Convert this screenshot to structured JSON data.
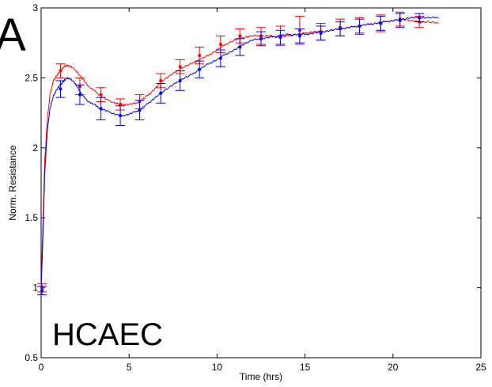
{
  "chart_data": {
    "type": "line",
    "panel_label": "A",
    "annotation": "HCAEC",
    "xlabel": "Time (hrs)",
    "ylabel": "Norm. Resistance",
    "xlim": [
      0,
      25
    ],
    "ylim": [
      0.5,
      3
    ],
    "xticks": [
      0,
      5,
      10,
      15,
      20,
      25
    ],
    "yticks": [
      0.5,
      1,
      1.5,
      2,
      2.5,
      3
    ],
    "xtick_labels": [
      "0",
      "5",
      "10",
      "15",
      "20",
      "25"
    ],
    "ytick_labels": [
      "0.5",
      "1",
      "1.5",
      "2",
      "2.5",
      "3"
    ],
    "grid": false,
    "colors": {
      "red": "#ff0000",
      "blue": "#0000ff"
    },
    "series": [
      {
        "color": "red",
        "line": [
          [
            0,
            1.0
          ],
          [
            0.1,
            1.45
          ],
          [
            0.2,
            1.9
          ],
          [
            0.35,
            2.2
          ],
          [
            0.5,
            2.38
          ],
          [
            0.7,
            2.48
          ],
          [
            0.9,
            2.52
          ],
          [
            1.1,
            2.55
          ],
          [
            1.3,
            2.58
          ],
          [
            1.5,
            2.59
          ],
          [
            1.7,
            2.58
          ],
          [
            2.0,
            2.55
          ],
          [
            2.3,
            2.5
          ],
          [
            2.7,
            2.44
          ],
          [
            3.0,
            2.41
          ],
          [
            3.4,
            2.37
          ],
          [
            3.8,
            2.34
          ],
          [
            4.2,
            2.32
          ],
          [
            4.6,
            2.31
          ],
          [
            5.0,
            2.31
          ],
          [
            5.4,
            2.32
          ],
          [
            5.8,
            2.35
          ],
          [
            6.2,
            2.39
          ],
          [
            6.6,
            2.44
          ],
          [
            7.0,
            2.49
          ],
          [
            7.5,
            2.53
          ],
          [
            8.0,
            2.57
          ],
          [
            8.5,
            2.6
          ],
          [
            9.0,
            2.63
          ],
          [
            9.5,
            2.66
          ],
          [
            10.0,
            2.7
          ],
          [
            10.5,
            2.74
          ],
          [
            11.0,
            2.77
          ],
          [
            11.5,
            2.79
          ],
          [
            12.0,
            2.8
          ],
          [
            12.5,
            2.8
          ],
          [
            13.0,
            2.8
          ],
          [
            13.5,
            2.79
          ],
          [
            14.0,
            2.8
          ],
          [
            14.5,
            2.81
          ],
          [
            15.0,
            2.82
          ],
          [
            15.5,
            2.83
          ],
          [
            16.0,
            2.83
          ],
          [
            16.5,
            2.84
          ],
          [
            17.0,
            2.85
          ],
          [
            17.5,
            2.86
          ],
          [
            18.0,
            2.87
          ],
          [
            18.5,
            2.88
          ],
          [
            19.0,
            2.89
          ],
          [
            19.5,
            2.9
          ],
          [
            20.0,
            2.91
          ],
          [
            20.5,
            2.92
          ],
          [
            21.0,
            2.91
          ],
          [
            21.5,
            2.9
          ],
          [
            22.0,
            2.9
          ],
          [
            22.6,
            2.89
          ]
        ],
        "points": [
          {
            "x": 0.05,
            "y": 1.0,
            "err": 0.03
          },
          {
            "x": 1.1,
            "y": 2.55,
            "err": 0.05
          },
          {
            "x": 2.2,
            "y": 2.44,
            "err": 0.06
          },
          {
            "x": 3.4,
            "y": 2.38,
            "err": 0.05
          },
          {
            "x": 4.5,
            "y": 2.31,
            "err": 0.04
          },
          {
            "x": 5.6,
            "y": 2.33,
            "err": 0.05
          },
          {
            "x": 6.8,
            "y": 2.48,
            "err": 0.05
          },
          {
            "x": 7.9,
            "y": 2.58,
            "err": 0.05
          },
          {
            "x": 9.0,
            "y": 2.66,
            "err": 0.06
          },
          {
            "x": 10.2,
            "y": 2.74,
            "err": 0.06
          },
          {
            "x": 11.3,
            "y": 2.8,
            "err": 0.05
          },
          {
            "x": 12.5,
            "y": 2.8,
            "err": 0.06
          },
          {
            "x": 13.6,
            "y": 2.8,
            "err": 0.07
          },
          {
            "x": 14.7,
            "y": 2.84,
            "err": 0.1
          },
          {
            "x": 15.9,
            "y": 2.83,
            "err": 0.06
          },
          {
            "x": 17.0,
            "y": 2.86,
            "err": 0.06
          },
          {
            "x": 18.1,
            "y": 2.87,
            "err": 0.06
          },
          {
            "x": 19.3,
            "y": 2.89,
            "err": 0.06
          },
          {
            "x": 20.4,
            "y": 2.92,
            "err": 0.05
          },
          {
            "x": 21.5,
            "y": 2.9,
            "err": 0.04
          }
        ]
      },
      {
        "color": "blue",
        "line": [
          [
            0,
            0.98
          ],
          [
            0.1,
            1.35
          ],
          [
            0.2,
            1.8
          ],
          [
            0.35,
            2.12
          ],
          [
            0.5,
            2.28
          ],
          [
            0.7,
            2.37
          ],
          [
            0.9,
            2.42
          ],
          [
            1.1,
            2.45
          ],
          [
            1.3,
            2.48
          ],
          [
            1.5,
            2.5
          ],
          [
            1.7,
            2.49
          ],
          [
            2.0,
            2.45
          ],
          [
            2.3,
            2.38
          ],
          [
            2.7,
            2.33
          ],
          [
            3.0,
            2.31
          ],
          [
            3.4,
            2.28
          ],
          [
            3.8,
            2.26
          ],
          [
            4.2,
            2.24
          ],
          [
            4.6,
            2.23
          ],
          [
            5.0,
            2.24
          ],
          [
            5.4,
            2.26
          ],
          [
            5.8,
            2.29
          ],
          [
            6.2,
            2.33
          ],
          [
            6.6,
            2.37
          ],
          [
            7.0,
            2.41
          ],
          [
            7.5,
            2.45
          ],
          [
            8.0,
            2.49
          ],
          [
            8.5,
            2.52
          ],
          [
            9.0,
            2.56
          ],
          [
            9.5,
            2.6
          ],
          [
            10.0,
            2.63
          ],
          [
            10.5,
            2.67
          ],
          [
            11.0,
            2.7
          ],
          [
            11.5,
            2.74
          ],
          [
            12.0,
            2.77
          ],
          [
            12.5,
            2.78
          ],
          [
            13.0,
            2.79
          ],
          [
            13.5,
            2.8
          ],
          [
            14.0,
            2.81
          ],
          [
            14.5,
            2.81
          ],
          [
            15.0,
            2.81
          ],
          [
            15.5,
            2.82
          ],
          [
            16.0,
            2.83
          ],
          [
            16.5,
            2.84
          ],
          [
            17.0,
            2.85
          ],
          [
            17.5,
            2.86
          ],
          [
            18.0,
            2.87
          ],
          [
            18.5,
            2.88
          ],
          [
            19.0,
            2.89
          ],
          [
            19.5,
            2.9
          ],
          [
            20.0,
            2.91
          ],
          [
            20.5,
            2.92
          ],
          [
            21.0,
            2.93
          ],
          [
            21.5,
            2.93
          ],
          [
            22.0,
            2.93
          ],
          [
            22.6,
            2.93
          ]
        ],
        "points": [
          {
            "x": 0.05,
            "y": 0.98,
            "err": 0.03
          },
          {
            "x": 1.1,
            "y": 2.42,
            "err": 0.06
          },
          {
            "x": 2.2,
            "y": 2.38,
            "err": 0.07
          },
          {
            "x": 3.4,
            "y": 2.28,
            "err": 0.08
          },
          {
            "x": 4.5,
            "y": 2.23,
            "err": 0.07
          },
          {
            "x": 5.6,
            "y": 2.27,
            "err": 0.07
          },
          {
            "x": 6.8,
            "y": 2.39,
            "err": 0.07
          },
          {
            "x": 7.9,
            "y": 2.48,
            "err": 0.07
          },
          {
            "x": 9.0,
            "y": 2.56,
            "err": 0.06
          },
          {
            "x": 10.2,
            "y": 2.64,
            "err": 0.06
          },
          {
            "x": 11.3,
            "y": 2.72,
            "err": 0.06
          },
          {
            "x": 12.5,
            "y": 2.78,
            "err": 0.05
          },
          {
            "x": 13.6,
            "y": 2.79,
            "err": 0.05
          },
          {
            "x": 14.7,
            "y": 2.8,
            "err": 0.05
          },
          {
            "x": 15.9,
            "y": 2.82,
            "err": 0.05
          },
          {
            "x": 17.0,
            "y": 2.85,
            "err": 0.05
          },
          {
            "x": 18.1,
            "y": 2.87,
            "err": 0.05
          },
          {
            "x": 19.3,
            "y": 2.89,
            "err": 0.05
          },
          {
            "x": 20.4,
            "y": 2.91,
            "err": 0.05
          },
          {
            "x": 21.5,
            "y": 2.93,
            "err": 0.03
          }
        ]
      }
    ]
  }
}
